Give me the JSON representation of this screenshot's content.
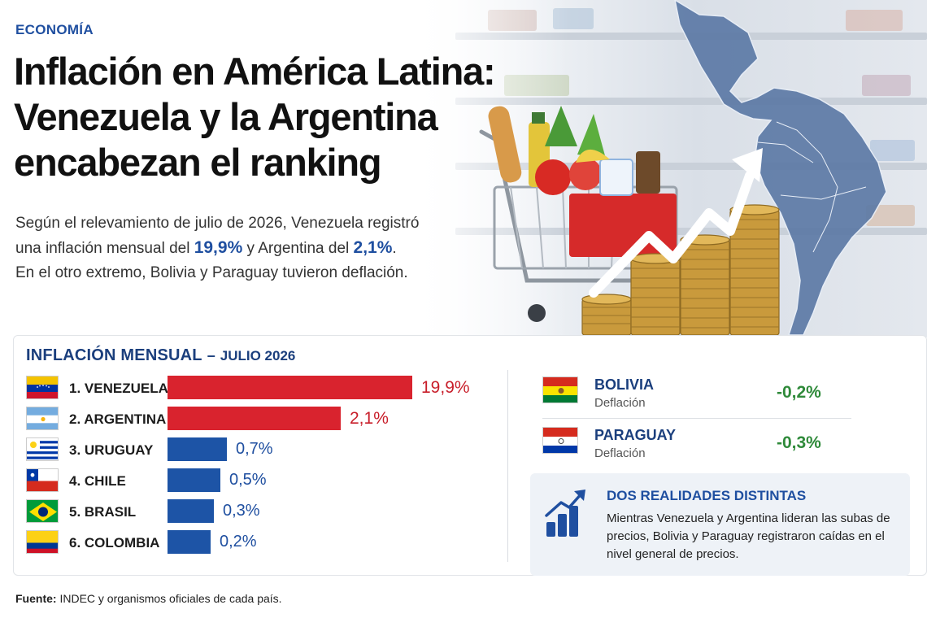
{
  "section": "ECONOMÍA",
  "headline": {
    "line1": "Inflación en América Latina:",
    "line2": "Venezuela y la Argentina",
    "line3": "encabezan el ranking"
  },
  "summary": {
    "part1": "Según el relevamiento de julio de 2026, Venezuela registró",
    "part2": "una inflación mensual del ",
    "value_venezuela": "19,9%",
    "part3": " y Argentina del ",
    "value_argentina": "2,1%",
    "part4": ".",
    "part5": "En el otro extremo, Bolivia y Paraguay tuvieron deflación."
  },
  "panel": {
    "title": "INFLACIÓN MENSUAL",
    "dash": "–",
    "subtitle": "JULIO 2026"
  },
  "chart_data": {
    "type": "bar",
    "orientation": "horizontal",
    "title": "INFLACIÓN MENSUAL – JULIO 2026",
    "categories": [
      "1. VENEZUELA",
      "2. ARGENTINA",
      "3. URUGUAY",
      "4. CHILE",
      "5. BRASIL",
      "6. COLOMBIA"
    ],
    "values": [
      19.9,
      2.1,
      0.7,
      0.5,
      0.3,
      0.2
    ],
    "labels": [
      "19,9%",
      "2,1%",
      "0,7%",
      "0,5%",
      "0,3%",
      "0,2%"
    ],
    "colors": [
      "#d9232e",
      "#d9232e",
      "#1d54a6",
      "#1d54a6",
      "#1d54a6",
      "#1d54a6"
    ],
    "grid": false,
    "axes_visible": false
  },
  "ranking_flags": [
    "venezuela-flag-icon",
    "argentina-flag-icon",
    "uruguay-flag-icon",
    "chile-flag-icon",
    "brasil-flag-icon",
    "colombia-flag-icon"
  ],
  "deflation": [
    {
      "country": "BOLIVIA",
      "status": "Deflación",
      "value": "-0,2%",
      "flag": "bolivia-flag-icon"
    },
    {
      "country": "PARAGUAY",
      "status": "Deflación",
      "value": "-0,3%",
      "flag": "paraguay-flag-icon"
    }
  ],
  "callout": {
    "icon": "growth-chart-icon",
    "title": "DOS REALIDADES DISTINTAS",
    "text": "Mientras Venezuela y Argentina lideran las subas de precios, Bolivia y Paraguay registraron caídas en el nivel general de precios."
  },
  "source": {
    "label": "Fuente:",
    "text": " INDEC y organismos oficiales de cada país."
  },
  "colors": {
    "accent_blue": "#1f4fa0",
    "bar_red": "#d9232e",
    "bar_blue": "#1d54a6",
    "positive_green": "#2f8a3a",
    "title_navy": "#1b3f7d"
  },
  "hero_image_icons": [
    "supermarket-shelves",
    "shopping-cart-icon",
    "coin-stacks-icon",
    "upward-arrow-icon",
    "latin-america-map-icon"
  ]
}
